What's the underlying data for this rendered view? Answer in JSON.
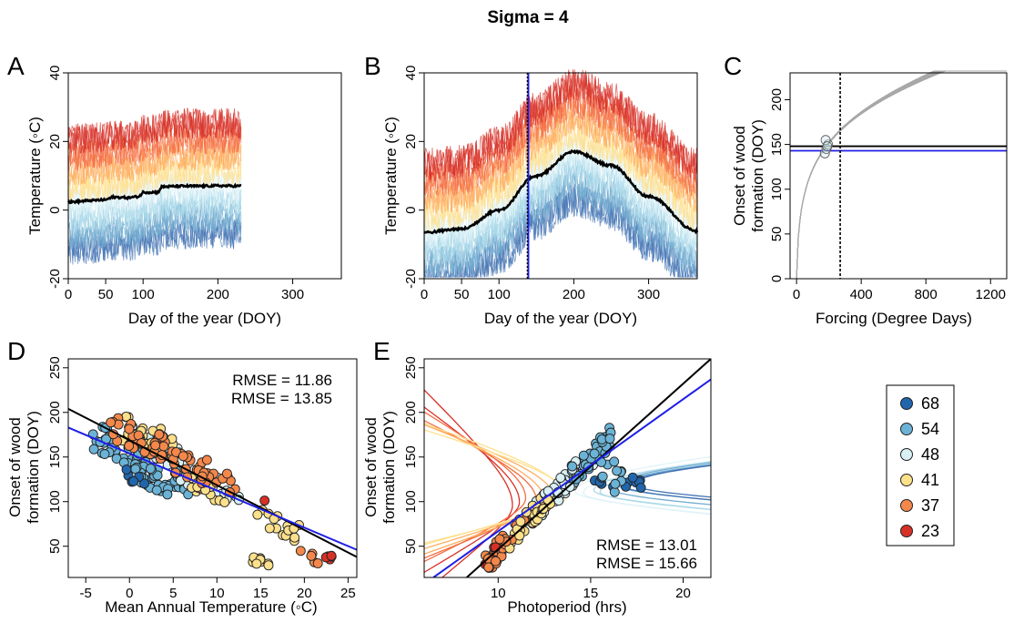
{
  "figure_title": "Sigma = 4",
  "palette": {
    "warm": [
      "#d73027",
      "#f46d43",
      "#fdae61",
      "#fee090"
    ],
    "cool": [
      "#e0f3f8",
      "#abd9e9",
      "#74add1",
      "#4575b4"
    ],
    "black": "#000000",
    "blue": "#1f1fe6",
    "grey": "#a8a8a8"
  },
  "legend": {
    "entries": [
      {
        "label": "68",
        "color": "#2166ac"
      },
      {
        "label": "54",
        "color": "#6bb3d6"
      },
      {
        "label": "48",
        "color": "#d9f0f4"
      },
      {
        "label": "41",
        "color": "#fde08b"
      },
      {
        "label": "37",
        "color": "#f4884b"
      },
      {
        "label": "23",
        "color": "#d73027"
      }
    ]
  },
  "chart_data": [
    {
      "panel": "A",
      "type": "line",
      "xlabel": "Day of the year (DOY)",
      "ylabel": "Temperature (◦C)",
      "xlim": [
        0,
        365
      ],
      "ylim": [
        -20,
        40
      ],
      "xticks": [
        0,
        50,
        100,
        200,
        300
      ],
      "yticks": [
        -20,
        0,
        20,
        40
      ],
      "series": [
        {
          "x": [
            0,
            30,
            50,
            60,
            80,
            95,
            100,
            120,
            125,
            150,
            180,
            200,
            231
          ],
          "y": [
            2.3,
            2.8,
            3.0,
            3.8,
            3.6,
            4.0,
            5.2,
            5.2,
            6.8,
            7.0,
            7.0,
            7.1,
            7.0
          ],
          "color": "#000000"
        }
      ],
      "ribbon": {
        "x_range": [
          0,
          231
        ],
        "low": -18,
        "high": 36,
        "center": 5
      }
    },
    {
      "panel": "B",
      "type": "line",
      "xlabel": "Day of the year (DOY)",
      "ylabel": "Temperature (◦C)",
      "xlim": [
        0,
        365
      ],
      "ylim": [
        -20,
        40
      ],
      "xticks": [
        0,
        50,
        100,
        200,
        300
      ],
      "yticks": [
        -20,
        0,
        20,
        40
      ],
      "vline": 138,
      "series": [
        {
          "name": "",
          "x": [
            0,
            50,
            100,
            150,
            200,
            250,
            300,
            365
          ],
          "y": [
            -6.5,
            -5.5,
            0,
            10,
            17,
            13,
            4,
            -6.2
          ],
          "color": "#000000"
        }
      ],
      "ribbon": {
        "x_range": [
          0,
          365
        ],
        "low": -20,
        "high": 42,
        "center_peak": 17
      }
    },
    {
      "panel": "C",
      "type": "line",
      "xlabel": "Forcing (Degree Days)",
      "ylabel": "Onset of wood formation (DOY)",
      "xlim": [
        -40,
        1300
      ],
      "ylim": [
        0,
        230
      ],
      "xticks": [
        0,
        400,
        800,
        1200
      ],
      "yticks": [
        0,
        50,
        100,
        150,
        200
      ],
      "vline": 270,
      "hlines": [
        {
          "y": 148,
          "color": "#000000"
        },
        {
          "y": 143,
          "color": "#1f1fe6"
        }
      ],
      "points": {
        "x": [
          175,
          185,
          195,
          180,
          190
        ],
        "y": [
          140,
          145,
          150,
          155,
          148
        ]
      }
    },
    {
      "panel": "D",
      "type": "scatter",
      "xlabel": "Mean Annual Temperature (◦C)",
      "ylabel": "Onset of wood formation (DOY)",
      "xlim": [
        -7,
        26
      ],
      "ylim": [
        15,
        260
      ],
      "xticks": [
        -5,
        0,
        5,
        10,
        15,
        20,
        25
      ],
      "yticks": [
        50,
        100,
        150,
        200,
        250
      ],
      "lines": [
        {
          "x": [
            -7,
            26
          ],
          "y": [
            204,
            38
          ],
          "color": "#000000"
        },
        {
          "x": [
            -7,
            26
          ],
          "y": [
            183,
            46
          ],
          "color": "#1f1fe6"
        }
      ],
      "rmse": [
        {
          "text": "RMSE = 11.86",
          "color": "#000000"
        },
        {
          "text": "RMSE = 13.85",
          "color": "#1f1fe6"
        }
      ]
    },
    {
      "panel": "E",
      "type": "scatter",
      "xlabel": "Photoperiod (hrs)",
      "ylabel": "Onset of wood formation (DOY)",
      "xlim": [
        6,
        21.5
      ],
      "ylim": [
        15,
        260
      ],
      "xticks": [
        10,
        15,
        20
      ],
      "yticks": [
        50,
        100,
        150,
        200,
        250
      ],
      "lines": [
        {
          "x": [
            8.3,
            21.5
          ],
          "y": [
            15,
            260
          ],
          "color": "#000000"
        },
        {
          "x": [
            6.5,
            21.5
          ],
          "y": [
            15,
            237
          ],
          "color": "#1f1fe6"
        }
      ],
      "rmse": [
        {
          "text": "RMSE = 13.01",
          "color": "#000000"
        },
        {
          "text": "RMSE = 15.66",
          "color": "#1f1fe6"
        }
      ]
    }
  ]
}
